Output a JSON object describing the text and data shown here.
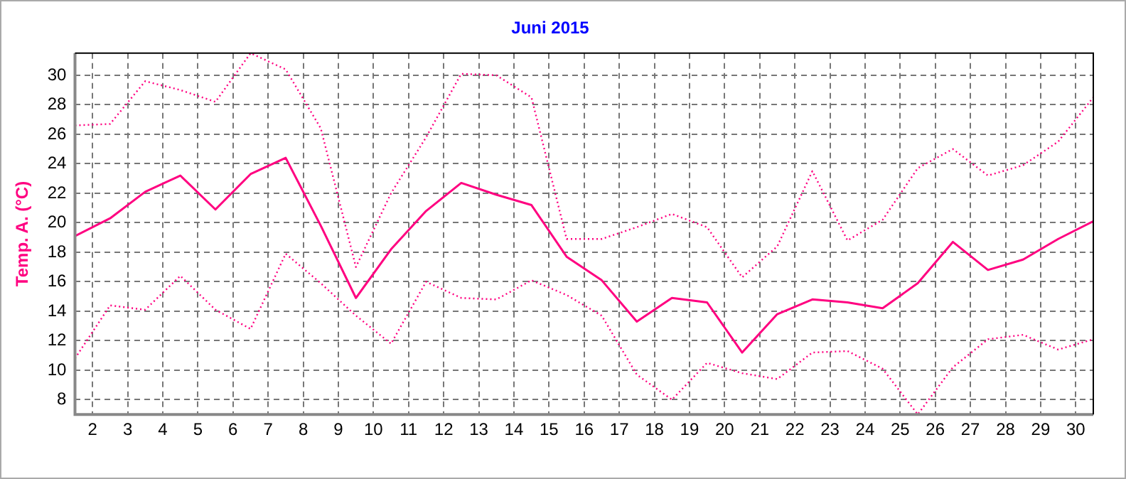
{
  "chart_data": {
    "type": "line",
    "title": "Juni 2015",
    "ylabel": "Temp. A. (°C)",
    "x": [
      1.5,
      2.5,
      3.5,
      4.5,
      5.5,
      6.5,
      7.5,
      8.5,
      9.5,
      10.5,
      11.5,
      12.5,
      13.5,
      14.5,
      15.5,
      16.5,
      17.5,
      18.5,
      19.5,
      20.5,
      21.5,
      22.5,
      23.5,
      24.5,
      25.5,
      26.5,
      27.5,
      28.5,
      29.5,
      30.5
    ],
    "xlim": [
      1.5,
      30.5
    ],
    "xticks": [
      2,
      3,
      4,
      5,
      6,
      7,
      8,
      9,
      10,
      11,
      12,
      13,
      14,
      15,
      16,
      17,
      18,
      19,
      20,
      21,
      22,
      23,
      24,
      25,
      26,
      27,
      28,
      29,
      30
    ],
    "ylim": [
      7,
      31.5
    ],
    "yticks": [
      8,
      10,
      12,
      14,
      16,
      18,
      20,
      22,
      24,
      26,
      28,
      30
    ],
    "grid": true,
    "legend": false,
    "marker": "none",
    "series": [
      {
        "color": "#ff0080",
        "line_style": "dotted",
        "values": [
          26.6,
          26.7,
          29.6,
          29.0,
          28.2,
          31.5,
          30.4,
          26.4,
          17.0,
          22.0,
          25.8,
          30.1,
          30.0,
          28.5,
          18.9,
          18.9,
          19.7,
          20.6,
          19.7,
          16.3,
          18.4,
          23.5,
          18.8,
          20.2,
          23.7,
          25.0,
          23.2,
          23.9,
          25.5,
          28.5
        ]
      },
      {
        "color": "#ff0080",
        "line_style": "solid",
        "values": [
          19.1,
          20.3,
          22.1,
          23.2,
          20.9,
          23.3,
          24.4,
          19.8,
          14.9,
          18.2,
          20.8,
          22.7,
          21.9,
          21.2,
          17.7,
          16.1,
          13.3,
          14.9,
          14.6,
          11.2,
          13.8,
          14.8,
          14.6,
          14.2,
          15.9,
          18.7,
          16.8,
          17.5,
          18.9,
          20.1
        ]
      },
      {
        "color": "#ff0080",
        "line_style": "dotted",
        "values": [
          10.8,
          14.4,
          14.1,
          16.4,
          14.1,
          12.8,
          17.9,
          15.9,
          13.7,
          11.8,
          16.0,
          14.9,
          14.8,
          16.1,
          15.1,
          13.7,
          9.7,
          8.0,
          10.5,
          9.8,
          9.4,
          11.2,
          11.3,
          10.1,
          7.0,
          10.2,
          12.1,
          12.4,
          11.4,
          12.1
        ]
      }
    ]
  }
}
